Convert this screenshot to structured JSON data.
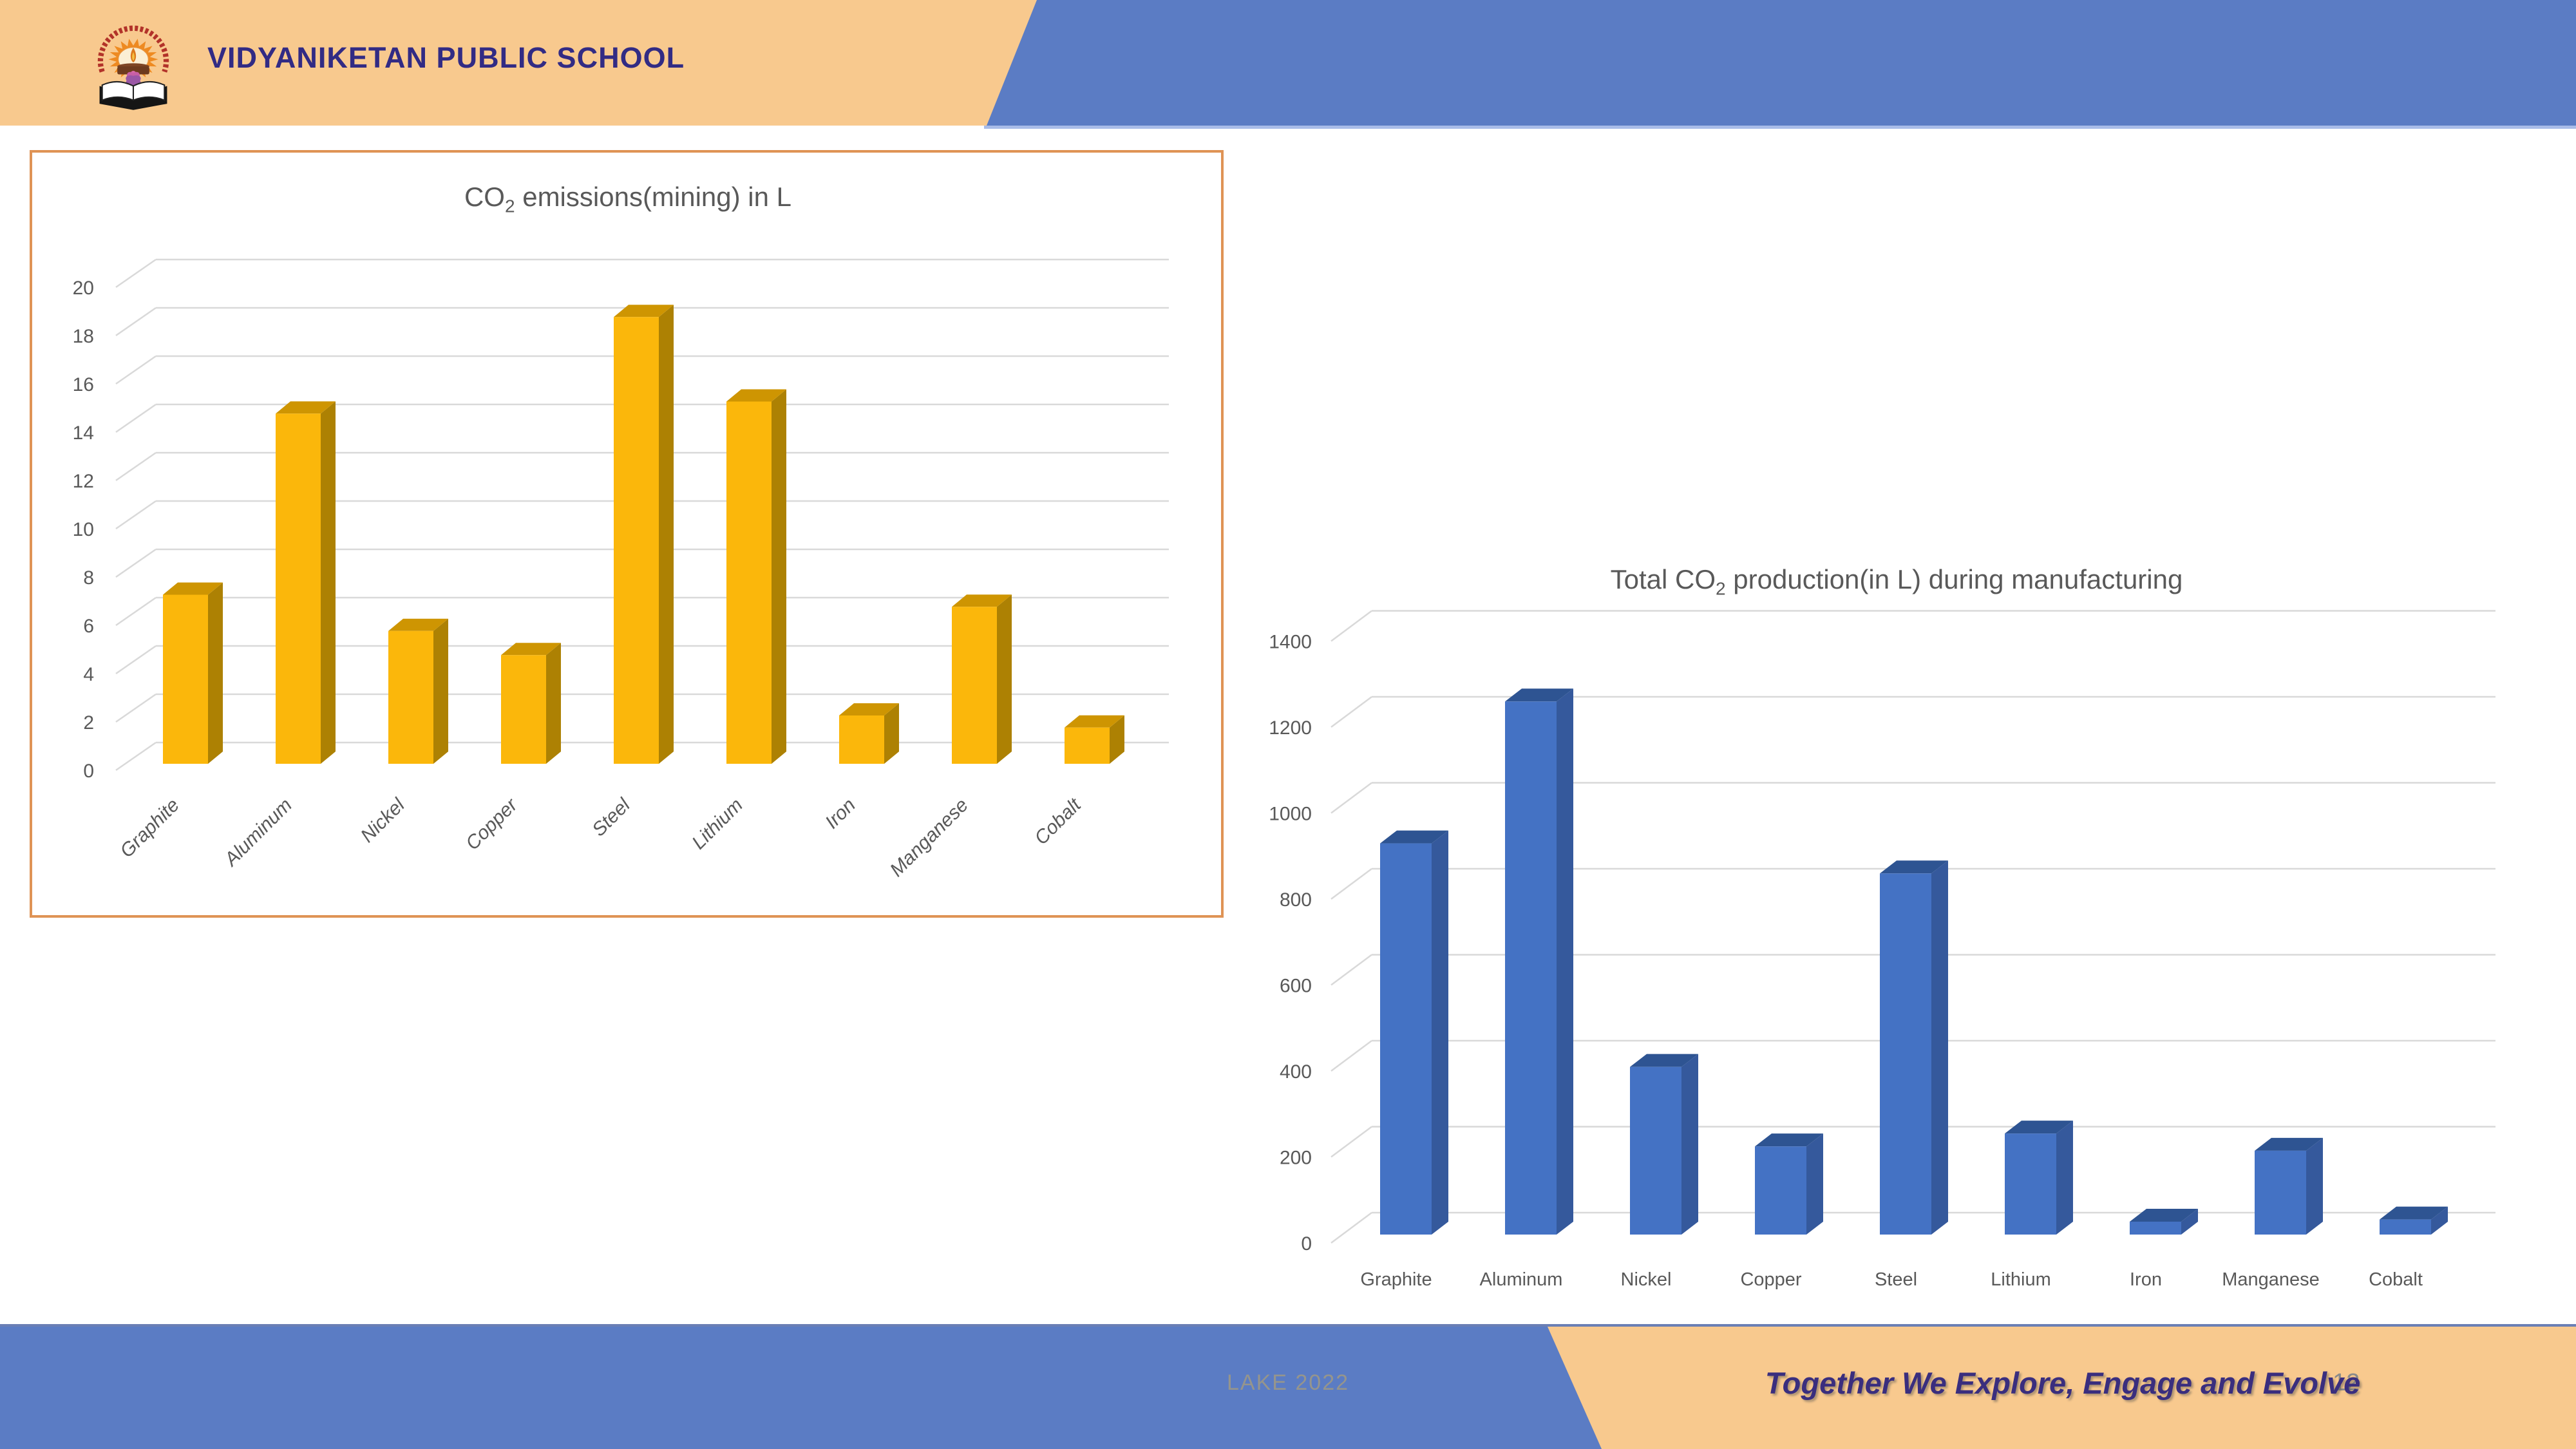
{
  "header": {
    "school_name": "VIDYANIKETAN PUBLIC SCHOOL"
  },
  "footer": {
    "event_label": "LAKE 2022",
    "slogan": "Together We Explore, Engage and Evolve",
    "page_number": "12"
  },
  "colors": {
    "header_peach": "#F8C98E",
    "band_blue": "#5B7CC4",
    "box_border_orange": "#DF9355",
    "title_gray": "#595959",
    "grid_gray": "#D9D9D9",
    "school_text": "#322B84",
    "slogan_text": "#3A2E7E",
    "event_text": "#95958D",
    "page_number_text": "#8A8A8A",
    "gold_bar_front": "#FBB70B",
    "gold_bar_top": "#CE9502",
    "gold_bar_side": "#AD8103",
    "blue_bar_front": "#4472C4",
    "blue_bar_top": "#2E5492",
    "blue_bar_side": "#35599C"
  },
  "chart_data": [
    {
      "type": "bar",
      "style": "3d",
      "id": "mining-emissions",
      "title": "CO2 emissions(mining) in L",
      "title_parts": {
        "prefix": "CO",
        "sub": "2",
        "suffix": " emissions(mining) in L"
      },
      "categories": [
        "Graphite",
        "Aluminum",
        "Nickel",
        "Copper",
        "Steel",
        "Lithium",
        "Iron",
        "Manganese",
        "Cobalt"
      ],
      "values": [
        7,
        14.5,
        5.5,
        4.5,
        18.5,
        15,
        2,
        6.5,
        1.5
      ],
      "xlabel": "",
      "ylabel": "",
      "ylim": [
        0,
        20
      ],
      "yticks": [
        0,
        2,
        4,
        6,
        8,
        10,
        12,
        14,
        16,
        18,
        20
      ],
      "grid": true,
      "legend": "none",
      "bar_colors": {
        "front": "#FBB70B",
        "top": "#CE9502",
        "side": "#AD8103"
      }
    },
    {
      "type": "bar",
      "style": "3d",
      "id": "manufacturing-production",
      "title": "Total CO2 production(in L) during manufacturing",
      "title_parts": {
        "prefix": "Total CO",
        "sub": "2",
        "suffix": " production(in L) during manufacturing"
      },
      "categories": [
        "Graphite",
        "Aluminum",
        "Nickel",
        "Copper",
        "Steel",
        "Lithium",
        "Iron",
        "Manganese",
        "Cobalt"
      ],
      "values": [
        910,
        1240,
        390,
        205,
        840,
        235,
        30,
        195,
        35
      ],
      "xlabel": "",
      "ylabel": "",
      "ylim": [
        0,
        1400
      ],
      "yticks": [
        0,
        200,
        400,
        600,
        800,
        1000,
        1200,
        1400
      ],
      "grid": true,
      "legend": "none",
      "bar_colors": {
        "front": "#4472C4",
        "top": "#2E5492",
        "side": "#35599C"
      }
    }
  ]
}
